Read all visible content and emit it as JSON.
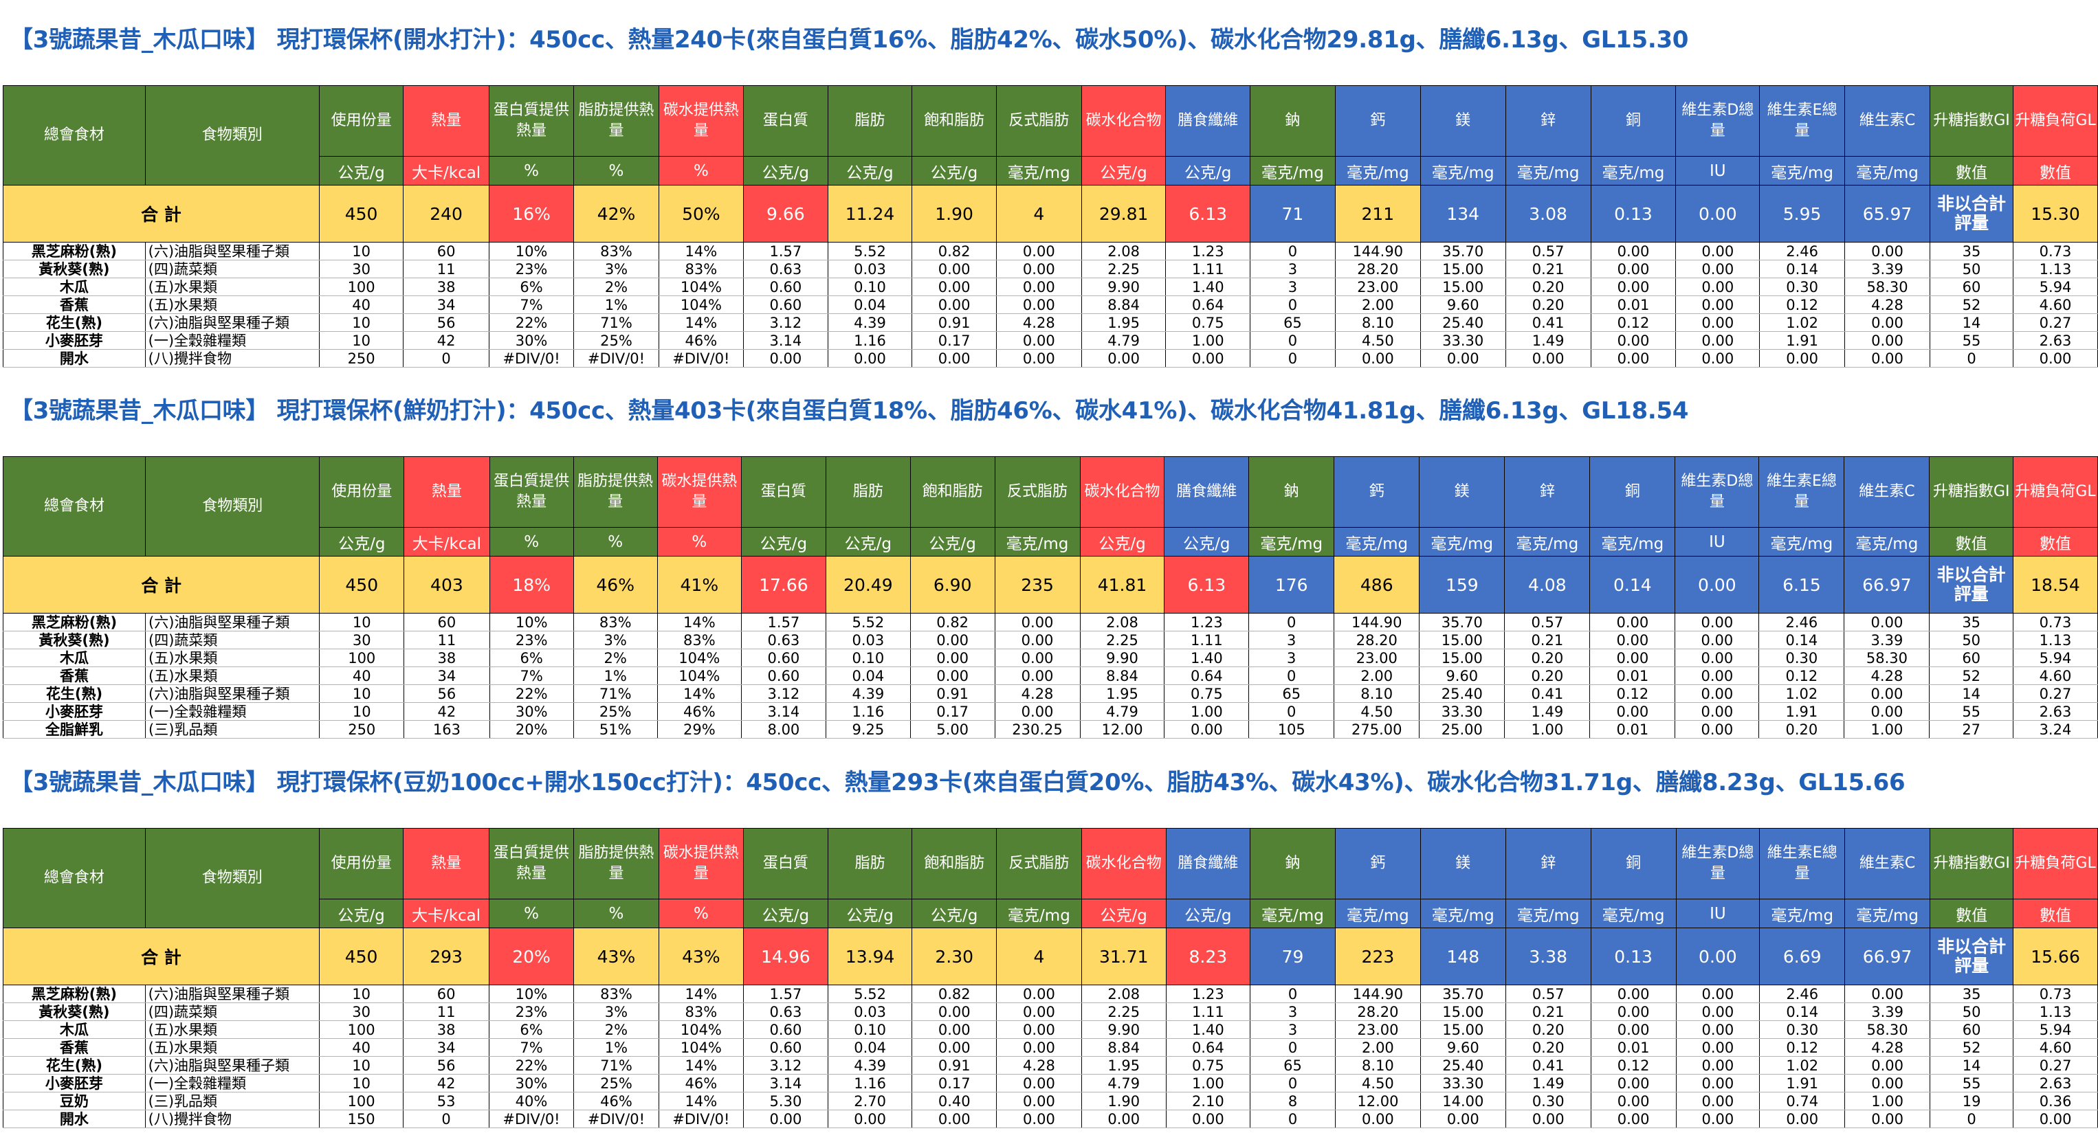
{
  "headers": {
    "labels": [
      "總會食材",
      "食物類別",
      "使用份量",
      "熱量",
      "蛋白質提供熱量",
      "脂肪提供熱量",
      "碳水提供熱量",
      "蛋白質",
      "脂肪",
      "飽和脂肪",
      "反式脂肪",
      "碳水化合物",
      "膳食纖維",
      "鈉",
      "鈣",
      "鎂",
      "鋅",
      "銅",
      "維生素D總量",
      "維生素E總量",
      "維生素C",
      "升糖指數GI",
      "升糖負荷GL"
    ],
    "units": [
      "公克/g",
      "大卡/kcal",
      "%",
      "%",
      "%",
      "公克/g",
      "公克/g",
      "公克/g",
      "毫克/mg",
      "公克/g",
      "公克/g",
      "毫克/mg",
      "毫克/mg",
      "毫克/mg",
      "毫克/mg",
      "毫克/mg",
      "IU",
      "毫克/mg",
      "毫克/mg",
      "數值",
      "數值"
    ],
    "total_label": "合 計"
  },
  "sections": [
    {
      "title": "【3號蔬果昔_木瓜口味】 現打環保杯(開水打汁)：450cc、熱量240卡(來自蛋白質16%、脂肪42%、碳水50%)、碳水化合物29.81g、膳纖6.13g、GL15.30",
      "totals": [
        "450",
        "240",
        "16%",
        "42%",
        "50%",
        "9.66",
        "11.24",
        "1.90",
        "4",
        "29.81",
        "6.13",
        "71",
        "211",
        "134",
        "3.08",
        "0.13",
        "0.00",
        "5.95",
        "65.97",
        "非以合計評量",
        "15.30"
      ],
      "rows": [
        [
          "黑芝麻粉(熟)",
          "(六)油脂與堅果種子類",
          "10",
          "60",
          "10%",
          "83%",
          "14%",
          "1.57",
          "5.52",
          "0.82",
          "0.00",
          "2.08",
          "1.23",
          "0",
          "144.90",
          "35.70",
          "0.57",
          "0.00",
          "0.00",
          "2.46",
          "0.00",
          "35",
          "0.73"
        ],
        [
          "黃秋葵(熟)",
          "(四)蔬菜類",
          "30",
          "11",
          "23%",
          "3%",
          "83%",
          "0.63",
          "0.03",
          "0.00",
          "0.00",
          "2.25",
          "1.11",
          "3",
          "28.20",
          "15.00",
          "0.21",
          "0.00",
          "0.00",
          "0.14",
          "3.39",
          "50",
          "1.13"
        ],
        [
          "木瓜",
          "(五)水果類",
          "100",
          "38",
          "6%",
          "2%",
          "104%",
          "0.60",
          "0.10",
          "0.00",
          "0.00",
          "9.90",
          "1.40",
          "3",
          "23.00",
          "15.00",
          "0.20",
          "0.00",
          "0.00",
          "0.30",
          "58.30",
          "60",
          "5.94"
        ],
        [
          "香蕉",
          "(五)水果類",
          "40",
          "34",
          "7%",
          "1%",
          "104%",
          "0.60",
          "0.04",
          "0.00",
          "0.00",
          "8.84",
          "0.64",
          "0",
          "2.00",
          "9.60",
          "0.20",
          "0.01",
          "0.00",
          "0.12",
          "4.28",
          "52",
          "4.60"
        ],
        [
          "花生(熟)",
          "(六)油脂與堅果種子類",
          "10",
          "56",
          "22%",
          "71%",
          "14%",
          "3.12",
          "4.39",
          "0.91",
          "4.28",
          "1.95",
          "0.75",
          "65",
          "8.10",
          "25.40",
          "0.41",
          "0.12",
          "0.00",
          "1.02",
          "0.00",
          "14",
          "0.27"
        ],
        [
          "小麥胚芽",
          "(一)全穀雜糧類",
          "10",
          "42",
          "30%",
          "25%",
          "46%",
          "3.14",
          "1.16",
          "0.17",
          "0.00",
          "4.79",
          "1.00",
          "0",
          "4.50",
          "33.30",
          "1.49",
          "0.00",
          "0.00",
          "1.91",
          "0.00",
          "55",
          "2.63"
        ],
        [
          "開水",
          "(八)攪拌食物",
          "250",
          "0",
          "#DIV/0!",
          "#DIV/0!",
          "#DIV/0!",
          "0.00",
          "0.00",
          "0.00",
          "0.00",
          "0.00",
          "0.00",
          "0",
          "0.00",
          "0.00",
          "0.00",
          "0.00",
          "0.00",
          "0.00",
          "0.00",
          "0",
          "0.00"
        ]
      ]
    },
    {
      "title": "【3號蔬果昔_木瓜口味】 現打環保杯(鮮奶打汁)：450cc、熱量403卡(來自蛋白質18%、脂肪46%、碳水41%)、碳水化合物41.81g、膳纖6.13g、GL18.54",
      "totals": [
        "450",
        "403",
        "18%",
        "46%",
        "41%",
        "17.66",
        "20.49",
        "6.90",
        "235",
        "41.81",
        "6.13",
        "176",
        "486",
        "159",
        "4.08",
        "0.14",
        "0.00",
        "6.15",
        "66.97",
        "非以合計評量",
        "18.54"
      ],
      "rows": [
        [
          "黑芝麻粉(熟)",
          "(六)油脂與堅果種子類",
          "10",
          "60",
          "10%",
          "83%",
          "14%",
          "1.57",
          "5.52",
          "0.82",
          "0.00",
          "2.08",
          "1.23",
          "0",
          "144.90",
          "35.70",
          "0.57",
          "0.00",
          "0.00",
          "2.46",
          "0.00",
          "35",
          "0.73"
        ],
        [
          "黃秋葵(熟)",
          "(四)蔬菜類",
          "30",
          "11",
          "23%",
          "3%",
          "83%",
          "0.63",
          "0.03",
          "0.00",
          "0.00",
          "2.25",
          "1.11",
          "3",
          "28.20",
          "15.00",
          "0.21",
          "0.00",
          "0.00",
          "0.14",
          "3.39",
          "50",
          "1.13"
        ],
        [
          "木瓜",
          "(五)水果類",
          "100",
          "38",
          "6%",
          "2%",
          "104%",
          "0.60",
          "0.10",
          "0.00",
          "0.00",
          "9.90",
          "1.40",
          "3",
          "23.00",
          "15.00",
          "0.20",
          "0.00",
          "0.00",
          "0.30",
          "58.30",
          "60",
          "5.94"
        ],
        [
          "香蕉",
          "(五)水果類",
          "40",
          "34",
          "7%",
          "1%",
          "104%",
          "0.60",
          "0.04",
          "0.00",
          "0.00",
          "8.84",
          "0.64",
          "0",
          "2.00",
          "9.60",
          "0.20",
          "0.01",
          "0.00",
          "0.12",
          "4.28",
          "52",
          "4.60"
        ],
        [
          "花生(熟)",
          "(六)油脂與堅果種子類",
          "10",
          "56",
          "22%",
          "71%",
          "14%",
          "3.12",
          "4.39",
          "0.91",
          "4.28",
          "1.95",
          "0.75",
          "65",
          "8.10",
          "25.40",
          "0.41",
          "0.12",
          "0.00",
          "1.02",
          "0.00",
          "14",
          "0.27"
        ],
        [
          "小麥胚芽",
          "(一)全穀雜糧類",
          "10",
          "42",
          "30%",
          "25%",
          "46%",
          "3.14",
          "1.16",
          "0.17",
          "0.00",
          "4.79",
          "1.00",
          "0",
          "4.50",
          "33.30",
          "1.49",
          "0.00",
          "0.00",
          "1.91",
          "0.00",
          "55",
          "2.63"
        ],
        [
          "全脂鮮乳",
          "(三)乳品類",
          "250",
          "163",
          "20%",
          "51%",
          "29%",
          "8.00",
          "9.25",
          "5.00",
          "230.25",
          "12.00",
          "0.00",
          "105",
          "275.00",
          "25.00",
          "1.00",
          "0.01",
          "0.00",
          "0.20",
          "1.00",
          "27",
          "3.24"
        ]
      ]
    },
    {
      "title": "【3號蔬果昔_木瓜口味】 現打環保杯(豆奶100cc+開水150cc打汁)：450cc、熱量293卡(來自蛋白質20%、脂肪43%、碳水43%)、碳水化合物31.71g、膳纖8.23g、GL15.66",
      "totals": [
        "450",
        "293",
        "20%",
        "43%",
        "43%",
        "14.96",
        "13.94",
        "2.30",
        "4",
        "31.71",
        "8.23",
        "79",
        "223",
        "148",
        "3.38",
        "0.13",
        "0.00",
        "6.69",
        "66.97",
        "非以合計評量",
        "15.66"
      ],
      "rows": [
        [
          "黑芝麻粉(熟)",
          "(六)油脂與堅果種子類",
          "10",
          "60",
          "10%",
          "83%",
          "14%",
          "1.57",
          "5.52",
          "0.82",
          "0.00",
          "2.08",
          "1.23",
          "0",
          "144.90",
          "35.70",
          "0.57",
          "0.00",
          "0.00",
          "2.46",
          "0.00",
          "35",
          "0.73"
        ],
        [
          "黃秋葵(熟)",
          "(四)蔬菜類",
          "30",
          "11",
          "23%",
          "3%",
          "83%",
          "0.63",
          "0.03",
          "0.00",
          "0.00",
          "2.25",
          "1.11",
          "3",
          "28.20",
          "15.00",
          "0.21",
          "0.00",
          "0.00",
          "0.14",
          "3.39",
          "50",
          "1.13"
        ],
        [
          "木瓜",
          "(五)水果類",
          "100",
          "38",
          "6%",
          "2%",
          "104%",
          "0.60",
          "0.10",
          "0.00",
          "0.00",
          "9.90",
          "1.40",
          "3",
          "23.00",
          "15.00",
          "0.20",
          "0.00",
          "0.00",
          "0.30",
          "58.30",
          "60",
          "5.94"
        ],
        [
          "香蕉",
          "(五)水果類",
          "40",
          "34",
          "7%",
          "1%",
          "104%",
          "0.60",
          "0.04",
          "0.00",
          "0.00",
          "8.84",
          "0.64",
          "0",
          "2.00",
          "9.60",
          "0.20",
          "0.01",
          "0.00",
          "0.12",
          "4.28",
          "52",
          "4.60"
        ],
        [
          "花生(熟)",
          "(六)油脂與堅果種子類",
          "10",
          "56",
          "22%",
          "71%",
          "14%",
          "3.12",
          "4.39",
          "0.91",
          "4.28",
          "1.95",
          "0.75",
          "65",
          "8.10",
          "25.40",
          "0.41",
          "0.12",
          "0.00",
          "1.02",
          "0.00",
          "14",
          "0.27"
        ],
        [
          "小麥胚芽",
          "(一)全穀雜糧類",
          "10",
          "42",
          "30%",
          "25%",
          "46%",
          "3.14",
          "1.16",
          "0.17",
          "0.00",
          "4.79",
          "1.00",
          "0",
          "4.50",
          "33.30",
          "1.49",
          "0.00",
          "0.00",
          "1.91",
          "0.00",
          "55",
          "2.63"
        ],
        [
          "豆奶",
          "(三)乳品類",
          "100",
          "53",
          "40%",
          "46%",
          "14%",
          "5.30",
          "2.70",
          "0.40",
          "0.00",
          "1.90",
          "2.10",
          "8",
          "12.00",
          "14.00",
          "0.30",
          "0.00",
          "0.00",
          "0.74",
          "1.00",
          "19",
          "0.36"
        ],
        [
          "開水",
          "(八)攪拌食物",
          "150",
          "0",
          "#DIV/0!",
          "#DIV/0!",
          "#DIV/0!",
          "0.00",
          "0.00",
          "0.00",
          "0.00",
          "0.00",
          "0.00",
          "0",
          "0.00",
          "0.00",
          "0.00",
          "0.00",
          "0.00",
          "0.00",
          "0.00",
          "0",
          "0.00"
        ]
      ]
    }
  ]
}
